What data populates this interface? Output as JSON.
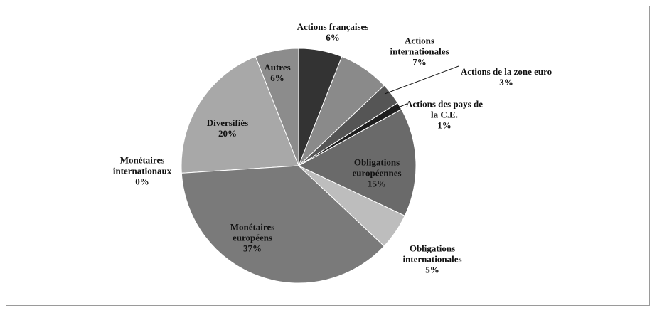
{
  "chart_data": {
    "type": "pie",
    "categories": [
      "Actions françaises",
      "Actions internationales",
      "Actions de la zone euro",
      "Actions des pays de la C.E.",
      "Obligations européennes",
      "Obligations internationales",
      "Monétaires européens",
      "Monétaires internationaux",
      "Diversifiés",
      "Autres"
    ],
    "values": [
      6,
      7,
      3,
      1,
      15,
      5,
      37,
      0,
      20,
      6
    ],
    "value_labels": [
      "6%",
      "7%",
      "3%",
      "1%",
      "15%",
      "5%",
      "37%",
      "0%",
      "20%",
      "6%"
    ],
    "colors": [
      "#333333",
      "#8a8a8a",
      "#555555",
      "#1e1e1e",
      "#6a6a6a",
      "#bdbdbd",
      "#7a7a7a",
      "#dcdcdc",
      "#a8a8a8",
      "#8c8c8c"
    ]
  }
}
